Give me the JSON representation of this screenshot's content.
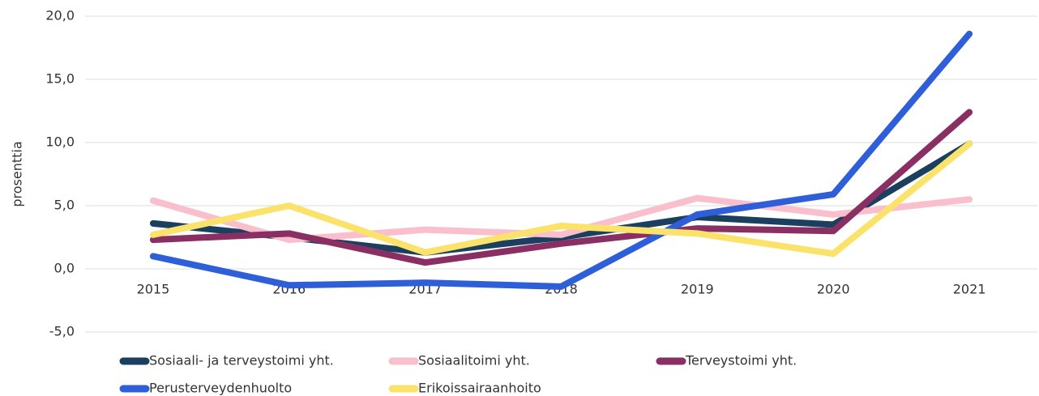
{
  "chart_data": {
    "type": "line",
    "y_label": "prosenttia",
    "categories": [
      "2015",
      "2016",
      "2017",
      "2018",
      "2019",
      "2020",
      "2021"
    ],
    "series": [
      {
        "name": "Sosiaali- ja terveystoimi yht.",
        "color": "#1b3f5e",
        "values": [
          3.6,
          2.5,
          1.3,
          2.5,
          4.1,
          3.5,
          9.9
        ]
      },
      {
        "name": "Sosiaalitoimi yht.",
        "color": "#f9bfcd",
        "values": [
          5.4,
          2.3,
          3.1,
          2.7,
          5.6,
          4.3,
          5.5
        ]
      },
      {
        "name": "Terveystoimi yht.",
        "color": "#8a2f63",
        "values": [
          2.3,
          2.8,
          0.5,
          2.0,
          3.2,
          3.0,
          12.4
        ]
      },
      {
        "name": "Perusterveydenhuolto",
        "color": "#2e5fd8",
        "values": [
          1.0,
          -1.3,
          -1.1,
          -1.4,
          4.3,
          5.9,
          18.6
        ]
      },
      {
        "name": "Erikoissairaanhoito",
        "color": "#fbe36b",
        "values": [
          2.7,
          5.0,
          1.3,
          3.4,
          2.8,
          1.2,
          9.9
        ]
      }
    ],
    "ylim": [
      -5,
      20
    ],
    "yticks": [
      {
        "value": -5,
        "label": "-5,0"
      },
      {
        "value": 0,
        "label": "0,0"
      },
      {
        "value": 5,
        "label": "5,0"
      },
      {
        "value": 10,
        "label": "10,0"
      },
      {
        "value": 15,
        "label": "15,0"
      },
      {
        "value": 20,
        "label": "20,0"
      }
    ],
    "grid": true
  }
}
